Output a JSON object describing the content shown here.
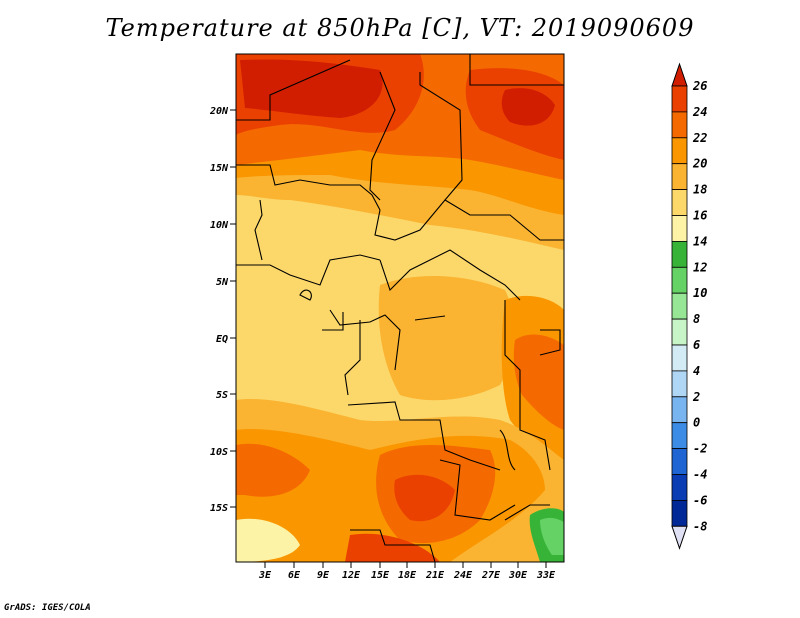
{
  "title": "Temperature at 850hPa [C], VT: 2019090609",
  "credit": "GrADS: IGES/COLA",
  "map": {
    "variable": "Temperature at 850hPa",
    "units": "C",
    "valid_time": "2019090609",
    "lon_range": [
      0,
      34
    ],
    "lat_range": [
      -20,
      25
    ],
    "lat_ticks": [
      "20N",
      "15N",
      "10N",
      "5N",
      "EQ",
      "5S",
      "10S",
      "15S"
    ],
    "lon_ticks": [
      "3E",
      "6E",
      "9E",
      "12E",
      "15E",
      "18E",
      "21E",
      "24E",
      "27E",
      "30E",
      "33E"
    ]
  },
  "colorbar": {
    "labels": [
      "26",
      "24",
      "22",
      "20",
      "18",
      "16",
      "14",
      "12",
      "10",
      "8",
      "6",
      "4",
      "2",
      "0",
      "-2",
      "-4",
      "-6",
      "-8"
    ],
    "colors": [
      "#d21e00",
      "#eb4100",
      "#f56a00",
      "#fa9600",
      "#fab432",
      "#fcd86b",
      "#fdf3a6",
      "#37b437",
      "#64d264",
      "#96e696",
      "#c8f5c8",
      "#d2ebf5",
      "#afd7f5",
      "#78b4f0",
      "#3c8ce6",
      "#1e64d2",
      "#0a3cb4",
      "#002896",
      "#000a6e",
      "#e0e0f5"
    ]
  }
}
